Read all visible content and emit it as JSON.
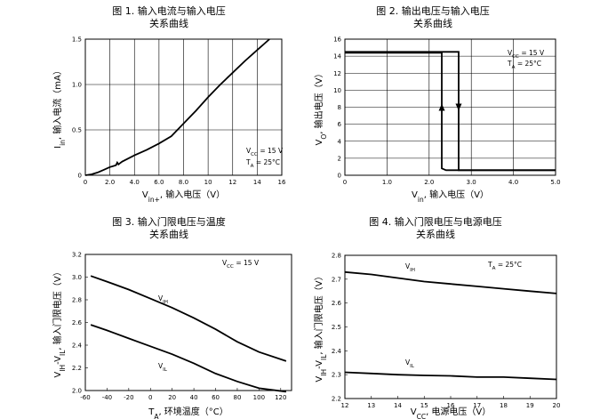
{
  "chart_data": [
    {
      "type": "line",
      "title": "图 1. 输入电流与输入电压",
      "subtitle": "关系曲线",
      "xlabel": "V",
      "xlabel_sub": "in+",
      "xlabel_rest": ", 输入电压（V）",
      "ylabel": "I",
      "ylabel_sub": "in",
      "ylabel_rest": ", 输入电流（mA）",
      "xlim": [
        0,
        16
      ],
      "ylim": [
        0,
        1.5
      ],
      "xticks": [
        0,
        2.0,
        4.0,
        6.0,
        8.0,
        10,
        12,
        14,
        16
      ],
      "xtick_labels": [
        "0",
        "2.0",
        "4.0",
        "6.0",
        "8.0",
        "10",
        "12",
        "14",
        "16"
      ],
      "yticks": [
        0,
        0.5,
        1.0,
        1.5
      ],
      "ytick_labels": [
        "0",
        "0.5",
        "1.0",
        "1.5"
      ],
      "grid": true,
      "annotations": [
        {
          "main": "V",
          "sub": "CC",
          "rest": " = 15 V"
        },
        {
          "main": "T",
          "sub": "A",
          "rest": " = 25°C"
        }
      ],
      "series": [
        {
          "x": [
            0,
            0.5,
            1.0,
            1.5,
            2.0,
            2.5,
            2.6,
            2.7,
            2.8,
            3.0,
            4.0,
            5.0,
            6.0,
            7.0,
            8.0,
            9.0,
            10,
            11,
            12,
            13,
            14,
            15
          ],
          "y": [
            0,
            0.01,
            0.03,
            0.06,
            0.09,
            0.11,
            0.14,
            0.12,
            0.13,
            0.15,
            0.22,
            0.28,
            0.35,
            0.43,
            0.57,
            0.71,
            0.86,
            1.0,
            1.13,
            1.26,
            1.38,
            1.5
          ]
        }
      ]
    },
    {
      "type": "line",
      "title": "图 2. 输出电压与输入电压",
      "subtitle": "关系曲线",
      "xlabel": "V",
      "xlabel_sub": "in",
      "xlabel_rest": ", 输入电压（V）",
      "ylabel": "V",
      "ylabel_sub": "O",
      "ylabel_rest": ", 输出电压（V）",
      "xlim": [
        0,
        5.0
      ],
      "ylim": [
        0,
        16
      ],
      "xticks": [
        0,
        1.0,
        2.0,
        3.0,
        4.0,
        5.0
      ],
      "xtick_labels": [
        "0",
        "1.0",
        "2.0",
        "3.0",
        "4.0",
        "5.0"
      ],
      "yticks": [
        0,
        2,
        4,
        6,
        8,
        10,
        12,
        14,
        16
      ],
      "ytick_labels": [
        "0",
        "2",
        "4",
        "6",
        "8",
        "10",
        "12",
        "14",
        "16"
      ],
      "grid": true,
      "annotations": [
        {
          "main": "V",
          "sub": "CC",
          "rest": " = 15 V"
        },
        {
          "main": "T",
          "sub": "A",
          "rest": " = 25°C"
        }
      ],
      "series": [
        {
          "x": [
            0,
            2.7,
            2.7,
            5.0
          ],
          "y": [
            14.5,
            14.5,
            0.6,
            0.6
          ]
        },
        {
          "x": [
            0,
            2.3,
            2.3,
            2.4,
            5.0
          ],
          "y": [
            14.4,
            14.4,
            0.8,
            0.6,
            0.6
          ]
        }
      ]
    },
    {
      "type": "line",
      "title": "图 3. 输入门限电压与温度",
      "subtitle": "关系曲线",
      "xlabel": "T",
      "xlabel_sub": "A",
      "xlabel_rest": ", 环境温度（°C）",
      "ylabel": "V",
      "ylabel_sub": "IH",
      "ylabel_mid": "-V",
      "ylabel_sub2": "IL",
      "ylabel_rest": ", 输入门限电压（V）",
      "xlim": [
        -60,
        130
      ],
      "ylim": [
        2.0,
        3.2
      ],
      "xticks": [
        -60,
        -40,
        -20,
        0,
        20,
        40,
        60,
        80,
        100,
        120
      ],
      "xtick_labels": [
        "-60",
        "-40",
        "-20",
        "0",
        "20",
        "40",
        "60",
        "80",
        "100",
        "120"
      ],
      "yticks": [
        2.0,
        2.2,
        2.4,
        2.6,
        2.8,
        3.0,
        3.2
      ],
      "ytick_labels": [
        "2.0",
        "2.2",
        "2.4",
        "2.6",
        "2.8",
        "3.0",
        "3.2"
      ],
      "grid": false,
      "annotations": [
        {
          "main": "V",
          "sub": "CC",
          "rest": " = 15 V"
        }
      ],
      "series": [
        {
          "name": "V_IH",
          "label_main": "V",
          "label_sub": "IH",
          "x": [
            -55,
            -40,
            -20,
            0,
            20,
            40,
            60,
            80,
            100,
            125
          ],
          "y": [
            3.01,
            2.96,
            2.89,
            2.81,
            2.73,
            2.64,
            2.54,
            2.43,
            2.34,
            2.26
          ]
        },
        {
          "name": "V_IL",
          "label_main": "V",
          "label_sub": "IL",
          "x": [
            -55,
            -40,
            -20,
            0,
            20,
            40,
            60,
            80,
            100,
            125
          ],
          "y": [
            2.58,
            2.53,
            2.46,
            2.39,
            2.32,
            2.24,
            2.15,
            2.08,
            2.02,
            1.99
          ]
        }
      ]
    },
    {
      "type": "line",
      "title": "图 4. 输入门限电压与电源电压",
      "subtitle": "关系曲线",
      "xlabel": "V",
      "xlabel_sub": "CC",
      "xlabel_rest": ", 电源电压（V）",
      "ylabel": "V",
      "ylabel_sub": "IH",
      "ylabel_mid": "-V",
      "ylabel_sub2": "IL",
      "ylabel_rest": ", 输入门限电压（V）",
      "xlim": [
        12,
        20
      ],
      "ylim": [
        2.2,
        2.8
      ],
      "xticks": [
        12,
        13,
        14,
        15,
        16,
        17,
        18,
        19,
        20
      ],
      "xtick_labels": [
        "12",
        "13",
        "14",
        "15",
        "16",
        "17",
        "18",
        "19",
        "20"
      ],
      "yticks": [
        2.2,
        2.3,
        2.4,
        2.5,
        2.6,
        2.7,
        2.8
      ],
      "ytick_labels": [
        "2.2",
        "2.3",
        "2.4",
        "2.5",
        "2.6",
        "2.7",
        "2.8"
      ],
      "grid": false,
      "annotations": [
        {
          "main": "T",
          "sub": "A",
          "rest": " = 25°C"
        }
      ],
      "series": [
        {
          "name": "V_IH",
          "label_main": "V",
          "label_sub": "IH",
          "x": [
            12,
            13,
            14,
            15,
            16,
            17,
            18,
            19,
            20
          ],
          "y": [
            2.73,
            2.72,
            2.705,
            2.69,
            2.68,
            2.67,
            2.66,
            2.65,
            2.64
          ]
        },
        {
          "name": "V_IL",
          "label_main": "V",
          "label_sub": "IL",
          "x": [
            12,
            13,
            14,
            15,
            16,
            17,
            18,
            19,
            20
          ],
          "y": [
            2.31,
            2.305,
            2.3,
            2.297,
            2.295,
            2.29,
            2.29,
            2.285,
            2.28
          ]
        }
      ]
    }
  ]
}
